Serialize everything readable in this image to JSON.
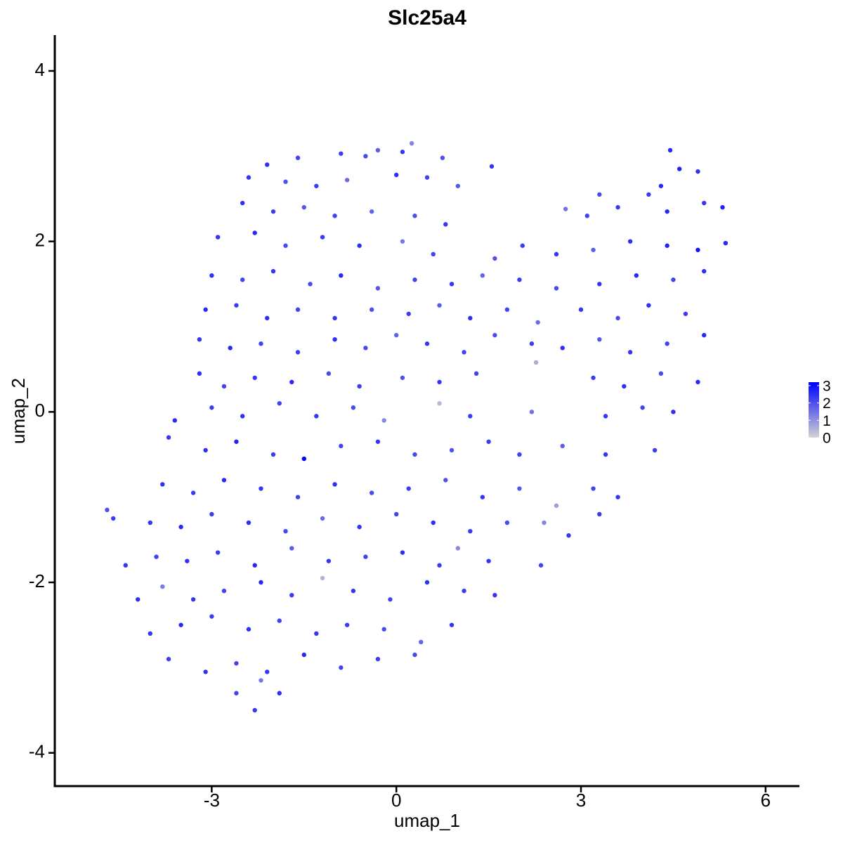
{
  "chart_data": {
    "type": "scatter",
    "title": "Slc25a4",
    "x_label": "umap_1",
    "y_label": "umap_2",
    "xlim": [
      -5.55,
      6.55
    ],
    "ylim": [
      -4.39,
      4.42
    ],
    "xticks": [
      -3,
      0,
      3,
      6
    ],
    "yticks": [
      -4,
      -2,
      0,
      2,
      4
    ],
    "color_low": "#d3d3d3",
    "color_high": "#0000ff",
    "clim": [
      0,
      3.2
    ],
    "colorbar_ticks": [
      0,
      1,
      2,
      3
    ],
    "x": [
      -0.9,
      -0.5,
      -0.3,
      0.1,
      0.25,
      4.45,
      0.75,
      -1.6,
      -2.1,
      -2.4,
      -1.8,
      -1.3,
      -0.8,
      0.0,
      0.5,
      1.0,
      1.55,
      4.1,
      4.6,
      4.9,
      4.3,
      3.3,
      -2.5,
      -2.0,
      -1.5,
      -1.0,
      -0.4,
      0.3,
      0.8,
      2.75,
      3.1,
      3.6,
      4.4,
      5.0,
      5.3,
      -2.9,
      -2.3,
      -1.8,
      -1.2,
      -0.6,
      0.1,
      0.6,
      1.6,
      2.05,
      2.6,
      3.2,
      3.8,
      4.4,
      4.9,
      5.35,
      -3.0,
      -2.5,
      -2.0,
      -1.4,
      -0.9,
      -0.3,
      0.3,
      0.9,
      1.4,
      2.0,
      2.6,
      3.3,
      3.9,
      4.5,
      5.0,
      -3.1,
      -2.6,
      -2.1,
      -1.6,
      -1.0,
      -0.4,
      0.2,
      0.7,
      1.2,
      1.8,
      2.3,
      3.0,
      3.6,
      4.1,
      4.7,
      -3.2,
      -2.7,
      -2.2,
      -1.6,
      -1.0,
      -0.5,
      0.0,
      0.5,
      1.1,
      1.6,
      2.2,
      2.7,
      3.3,
      3.8,
      4.4,
      5.0,
      -3.2,
      -2.8,
      -2.3,
      -1.7,
      -1.1,
      -0.6,
      0.1,
      0.7,
      1.3,
      2.27,
      3.2,
      3.7,
      4.3,
      4.9,
      -3.6,
      -3.0,
      -2.5,
      -1.9,
      -1.3,
      -0.7,
      -0.2,
      0.7,
      1.2,
      2.2,
      3.4,
      4.0,
      4.5,
      -3.7,
      -3.1,
      -2.6,
      -2.0,
      -1.5,
      -0.9,
      -0.3,
      0.3,
      0.9,
      1.5,
      2.0,
      2.7,
      3.4,
      4.2,
      -3.8,
      -3.3,
      -2.8,
      -2.2,
      -1.6,
      -1.0,
      -0.4,
      0.2,
      0.8,
      1.4,
      2.0,
      2.6,
      3.2,
      3.6,
      -4.6,
      -4.7,
      -4.0,
      -3.5,
      -3.0,
      -2.4,
      -1.8,
      -1.2,
      -0.6,
      0.0,
      0.6,
      1.2,
      1.8,
      2.4,
      2.8,
      3.3,
      -4.4,
      -3.9,
      -3.4,
      -2.9,
      -2.3,
      -1.7,
      -1.1,
      -0.5,
      0.1,
      0.7,
      1.0,
      1.5,
      2.35,
      -4.2,
      -3.8,
      -3.3,
      -2.8,
      -2.2,
      -1.7,
      -1.2,
      -0.7,
      -0.1,
      0.5,
      1.1,
      1.6,
      -4.0,
      -3.5,
      -3.0,
      -2.4,
      -1.9,
      -1.3,
      -0.8,
      -0.2,
      0.4,
      0.9,
      -3.7,
      -3.1,
      -2.6,
      -2.1,
      -1.5,
      -0.9,
      -0.3,
      0.3,
      -2.3,
      -2.6,
      -1.9,
      -2.2
    ],
    "y": [
      3.03,
      3.0,
      3.07,
      3.05,
      3.15,
      3.07,
      2.98,
      2.98,
      2.9,
      2.75,
      2.7,
      2.65,
      2.72,
      2.78,
      2.75,
      2.65,
      2.88,
      2.55,
      2.85,
      2.82,
      2.65,
      2.55,
      2.45,
      2.35,
      2.4,
      2.3,
      2.35,
      2.3,
      2.2,
      2.38,
      2.3,
      2.4,
      2.35,
      2.45,
      2.4,
      2.05,
      2.1,
      1.95,
      2.05,
      1.95,
      2.0,
      1.85,
      1.8,
      1.95,
      1.85,
      1.9,
      2.0,
      1.95,
      1.9,
      1.98,
      1.6,
      1.55,
      1.65,
      1.5,
      1.6,
      1.45,
      1.55,
      1.5,
      1.6,
      1.55,
      1.45,
      1.5,
      1.6,
      1.55,
      1.65,
      1.2,
      1.25,
      1.1,
      1.2,
      1.1,
      1.2,
      1.15,
      1.25,
      1.1,
      1.2,
      1.05,
      1.2,
      1.1,
      1.25,
      1.15,
      0.85,
      0.75,
      0.8,
      0.7,
      0.85,
      0.75,
      0.9,
      0.8,
      0.7,
      0.9,
      0.8,
      0.75,
      0.85,
      0.7,
      0.8,
      0.9,
      0.45,
      0.3,
      0.4,
      0.35,
      0.45,
      0.3,
      0.4,
      0.35,
      0.45,
      0.58,
      0.4,
      0.3,
      0.45,
      0.35,
      -0.1,
      0.05,
      -0.05,
      0.1,
      -0.05,
      0.05,
      -0.1,
      0.1,
      -0.05,
      0.0,
      -0.05,
      0.05,
      0.0,
      -0.3,
      -0.45,
      -0.35,
      -0.5,
      -0.55,
      -0.4,
      -0.35,
      -0.5,
      -0.45,
      -0.35,
      -0.5,
      -0.4,
      -0.5,
      -0.45,
      -0.85,
      -0.95,
      -0.8,
      -0.9,
      -1.0,
      -0.85,
      -0.95,
      -0.9,
      -0.8,
      -1.0,
      -0.9,
      -1.1,
      -0.9,
      -1.0,
      -1.25,
      -1.15,
      -1.3,
      -1.35,
      -1.2,
      -1.3,
      -1.4,
      -1.25,
      -1.35,
      -1.2,
      -1.3,
      -1.4,
      -1.3,
      -1.3,
      -1.45,
      -1.2,
      -1.8,
      -1.7,
      -1.75,
      -1.65,
      -1.8,
      -1.6,
      -1.75,
      -1.7,
      -1.65,
      -1.8,
      -1.6,
      -1.75,
      -1.8,
      -2.2,
      -2.05,
      -2.2,
      -2.1,
      -2.0,
      -2.15,
      -1.95,
      -2.1,
      -2.2,
      -2.0,
      -2.1,
      -2.15,
      -2.6,
      -2.5,
      -2.4,
      -2.55,
      -2.45,
      -2.6,
      -2.5,
      -2.55,
      -2.7,
      -2.5,
      -2.9,
      -3.05,
      -2.95,
      -3.05,
      -2.85,
      -3.0,
      -2.9,
      -2.85,
      -3.5,
      -3.3,
      -3.3,
      -3.15
    ],
    "values": [
      2.3,
      2.1,
      1.8,
      2.4,
      1.2,
      2.6,
      2.0,
      2.2,
      2.5,
      2.4,
      2.0,
      2.3,
      1.6,
      2.5,
      2.2,
      1.9,
      2.4,
      2.3,
      2.7,
      2.5,
      2.6,
      2.1,
      2.5,
      2.3,
      1.9,
      2.2,
      1.7,
      2.0,
      2.4,
      1.5,
      2.2,
      2.3,
      2.6,
      2.4,
      2.7,
      2.4,
      2.6,
      2.1,
      2.3,
      2.5,
      1.4,
      2.2,
      2.0,
      2.3,
      2.4,
      1.8,
      2.5,
      2.7,
      2.9,
      2.6,
      2.5,
      2.2,
      2.4,
      2.1,
      2.6,
      1.9,
      2.2,
      2.4,
      1.7,
      2.3,
      2.1,
      2.4,
      2.6,
      2.2,
      2.5,
      2.6,
      2.3,
      2.5,
      2.2,
      2.4,
      2.0,
      2.3,
      1.8,
      2.5,
      2.2,
      1.6,
      2.4,
      2.1,
      2.5,
      2.3,
      2.4,
      2.6,
      2.2,
      2.3,
      2.5,
      2.1,
      1.7,
      2.4,
      2.2,
      2.0,
      2.3,
      2.5,
      1.9,
      2.4,
      2.2,
      2.6,
      2.5,
      2.2,
      2.4,
      2.6,
      2.1,
      2.3,
      2.0,
      2.4,
      2.2,
      0.6,
      2.3,
      2.5,
      2.1,
      2.6,
      2.6,
      2.3,
      2.5,
      2.2,
      2.4,
      2.1,
      1.2,
      0.4,
      2.3,
      1.5,
      2.4,
      2.2,
      2.5,
      2.4,
      2.5,
      2.7,
      2.3,
      3.2,
      2.2,
      2.4,
      2.1,
      2.0,
      2.3,
      2.2,
      1.8,
      2.4,
      2.3,
      2.5,
      2.3,
      2.6,
      2.4,
      2.2,
      2.5,
      2.1,
      2.3,
      2.0,
      2.4,
      1.9,
      0.8,
      2.2,
      2.4,
      2.3,
      2.0,
      2.4,
      2.6,
      2.3,
      2.5,
      2.1,
      1.6,
      2.4,
      2.2,
      2.5,
      2.3,
      2.1,
      1.2,
      2.4,
      2.3,
      2.4,
      2.2,
      2.5,
      2.3,
      2.6,
      1.8,
      2.4,
      2.2,
      2.5,
      2.3,
      1.1,
      2.4,
      2.2,
      2.5,
      1.3,
      2.4,
      2.2,
      2.6,
      2.3,
      0.5,
      2.4,
      2.2,
      2.5,
      2.3,
      2.4,
      2.4,
      2.6,
      2.3,
      2.5,
      2.2,
      2.4,
      2.3,
      2.1,
      1.7,
      2.4,
      2.3,
      2.5,
      2.2,
      2.4,
      2.6,
      2.2,
      2.3,
      2.1,
      2.4,
      2.2,
      2.5,
      1.4
    ]
  }
}
